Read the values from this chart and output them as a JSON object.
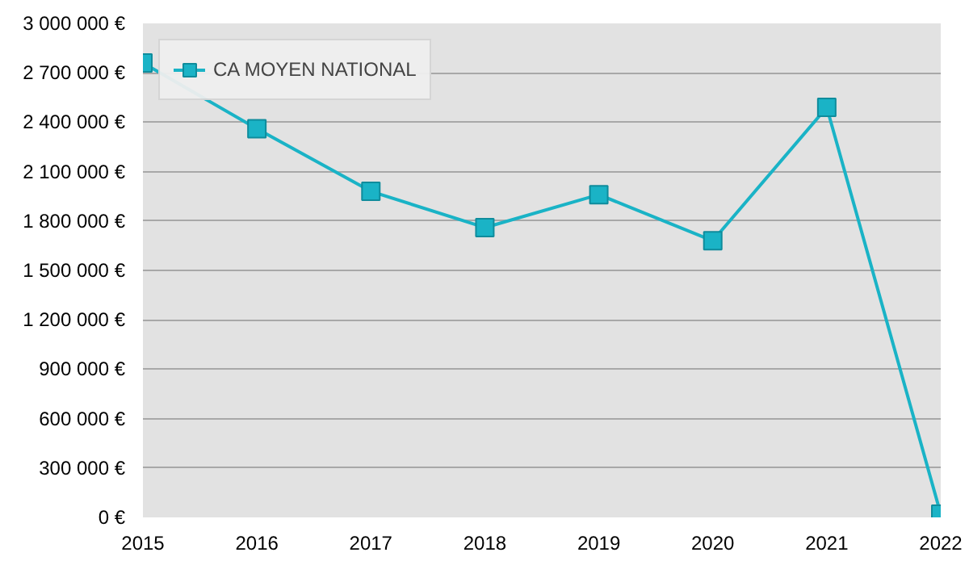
{
  "chart_data": {
    "type": "line",
    "x": [
      2015,
      2016,
      2017,
      2018,
      2019,
      2020,
      2021,
      2022
    ],
    "series": [
      {
        "name": "CA MOYEN NATIONAL",
        "color": "#1ab3c6",
        "values": [
          2760000,
          2360000,
          1980000,
          1760000,
          1960000,
          1680000,
          2490000,
          20000
        ]
      }
    ],
    "xlim": [
      2015,
      2022
    ],
    "xticks": [
      2015,
      2016,
      2017,
      2018,
      2019,
      2020,
      2021,
      2022
    ],
    "ylim": [
      0,
      3000000
    ],
    "yticks": [
      {
        "value": 0,
        "label": "0 €"
      },
      {
        "value": 300000,
        "label": "300 000 €"
      },
      {
        "value": 600000,
        "label": "600 000 €"
      },
      {
        "value": 900000,
        "label": "900 000 €"
      },
      {
        "value": 1200000,
        "label": "1 200 000 €"
      },
      {
        "value": 1500000,
        "label": "1 500 000 €"
      },
      {
        "value": 1800000,
        "label": "1 800 000 €"
      },
      {
        "value": 2100000,
        "label": "2 100 000 €"
      },
      {
        "value": 2400000,
        "label": "2 400 000 €"
      },
      {
        "value": 2700000,
        "label": "2 700 000 €"
      },
      {
        "value": 3000000,
        "label": "3 000 000 €"
      }
    ],
    "grid": "y",
    "legend": "top left",
    "marker": "square",
    "line_style": "solid"
  }
}
